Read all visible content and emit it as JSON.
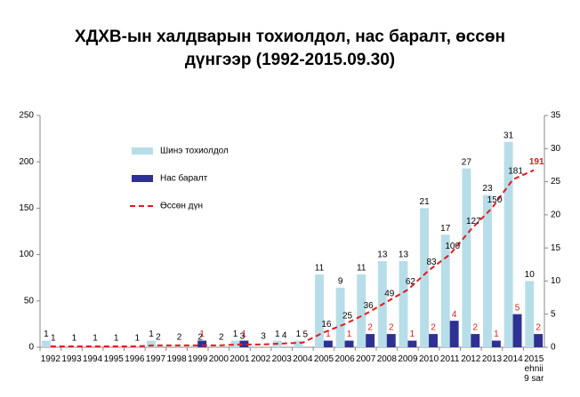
{
  "chart_data": {
    "type": "bar",
    "title": [
      "ХДХВ-ын халдварын тохиолдол, нас баралт, өссөн",
      "дүнгээр  (1992-2015.09.30)"
    ],
    "categories": [
      "1992",
      "1993",
      "1994",
      "1995",
      "1996",
      "1997",
      "1998",
      "1999",
      "2000",
      "2001",
      "2002",
      "2003",
      "2004",
      "2005",
      "2006",
      "2007",
      "2008",
      "2009",
      "2010",
      "2011",
      "2012",
      "2013",
      "2014",
      "2015\nehnii\n9 sar"
    ],
    "series": [
      {
        "name": "Шинэ тохиолдол",
        "type": "bar",
        "axis": "y2",
        "color": "#b7dee8",
        "values": [
          1,
          0,
          0,
          0,
          0,
          1,
          0,
          0,
          0,
          1,
          0,
          1,
          1,
          11,
          9,
          11,
          13,
          13,
          21,
          17,
          27,
          23,
          31,
          10
        ]
      },
      {
        "name": "Нас баралт",
        "type": "bar",
        "axis": "y2",
        "color": "#2e3192",
        "values": [
          0,
          0,
          0,
          0,
          0,
          0,
          0,
          1,
          0,
          1,
          0,
          0,
          0,
          1,
          1,
          2,
          2,
          1,
          2,
          4,
          2,
          1,
          5,
          2
        ]
      },
      {
        "name": "Өссөн дүн",
        "type": "line",
        "axis": "y",
        "color": "#e31a1c",
        "values": [
          1,
          1,
          1,
          1,
          1,
          2,
          2,
          2,
          2,
          3,
          3,
          4,
          5,
          16,
          25,
          36,
          49,
          62,
          83,
          100,
          127,
          150,
          181,
          191
        ]
      }
    ],
    "ylim": [
      0,
      250
    ],
    "yticks": [
      0,
      50,
      100,
      150,
      200,
      250
    ],
    "y2lim": [
      0,
      35
    ],
    "y2ticks": [
      0,
      5,
      10,
      15,
      20,
      25,
      30,
      35
    ]
  }
}
